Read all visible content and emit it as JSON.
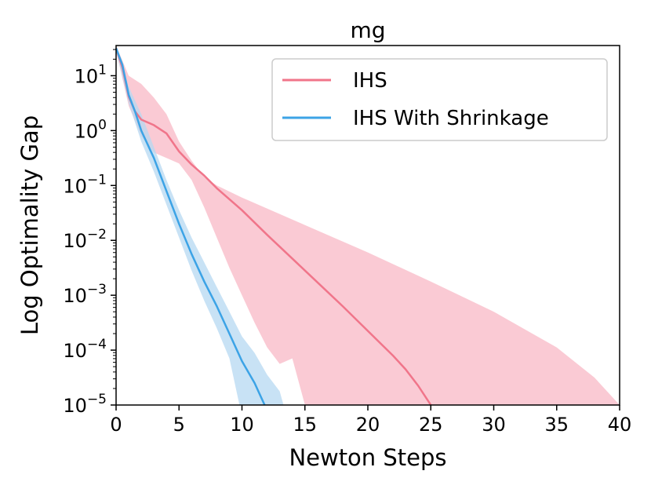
{
  "chart_data": {
    "type": "line",
    "title": "mg",
    "xlabel": "Newton Steps",
    "ylabel": "Log Optimality Gap",
    "xlim": [
      0,
      40
    ],
    "ylim_log10": [
      -5,
      1.55
    ],
    "yscale": "log",
    "x_ticks": [
      0,
      5,
      10,
      15,
      20,
      25,
      30,
      35,
      40
    ],
    "x_tick_labels": [
      "0",
      "5",
      "10",
      "15",
      "20",
      "25",
      "30",
      "35",
      "40"
    ],
    "y_ticks_exponent": [
      1,
      0,
      -1,
      -2,
      -3,
      -4,
      -5
    ],
    "y_tick_base": "10",
    "legend_position": "upper-right",
    "series": [
      {
        "name": "IHS",
        "color": "#f0758a",
        "band_color": "#f8b8c6",
        "mean_log10": [
          [
            0,
            1.5
          ],
          [
            0.5,
            1.15
          ],
          [
            1,
            0.62
          ],
          [
            1.5,
            0.35
          ],
          [
            2,
            0.2
          ],
          [
            3,
            0.1
          ],
          [
            4,
            -0.05
          ],
          [
            5,
            -0.38
          ],
          [
            6,
            -0.62
          ],
          [
            7,
            -0.82
          ],
          [
            8,
            -1.05
          ],
          [
            10,
            -1.45
          ],
          [
            12,
            -1.9
          ],
          [
            15,
            -2.55
          ],
          [
            18,
            -3.2
          ],
          [
            20,
            -3.65
          ],
          [
            22,
            -4.1
          ],
          [
            23,
            -4.35
          ],
          [
            24,
            -4.65
          ],
          [
            25,
            -5.0
          ]
        ],
        "upper_log10": [
          [
            0,
            1.55
          ],
          [
            1,
            1.0
          ],
          [
            2,
            0.85
          ],
          [
            3,
            0.6
          ],
          [
            4,
            0.3
          ],
          [
            5,
            -0.2
          ],
          [
            6,
            -0.55
          ],
          [
            7,
            -0.85
          ],
          [
            8,
            -1.0
          ],
          [
            10,
            -1.22
          ],
          [
            15,
            -1.72
          ],
          [
            20,
            -2.22
          ],
          [
            25,
            -2.75
          ],
          [
            30,
            -3.3
          ],
          [
            35,
            -3.95
          ],
          [
            38,
            -4.5
          ],
          [
            40,
            -5.0
          ]
        ],
        "lower_log10": [
          [
            0,
            1.45
          ],
          [
            1,
            0.45
          ],
          [
            2,
            -0.1
          ],
          [
            3,
            -0.4
          ],
          [
            4,
            -0.5
          ],
          [
            5,
            -0.6
          ],
          [
            6,
            -0.9
          ],
          [
            7,
            -1.4
          ],
          [
            8,
            -1.95
          ],
          [
            9,
            -2.5
          ],
          [
            10,
            -3.0
          ],
          [
            11,
            -3.5
          ],
          [
            12,
            -3.95
          ],
          [
            13,
            -4.25
          ],
          [
            14,
            -4.15
          ],
          [
            15,
            -5.0
          ]
        ]
      },
      {
        "name": "IHS With Shrinkage",
        "color": "#3ca3e6",
        "band_color": "#b5d8f2",
        "mean_log10": [
          [
            0,
            1.5
          ],
          [
            0.5,
            1.2
          ],
          [
            1,
            0.65
          ],
          [
            1.5,
            0.35
          ],
          [
            2,
            0.0
          ],
          [
            3,
            -0.5
          ],
          [
            4,
            -1.1
          ],
          [
            5,
            -1.7
          ],
          [
            6,
            -2.25
          ],
          [
            7,
            -2.75
          ],
          [
            8,
            -3.2
          ],
          [
            9,
            -3.7
          ],
          [
            10,
            -4.2
          ],
          [
            11,
            -4.6
          ],
          [
            11.8,
            -5.0
          ]
        ],
        "upper_log10": [
          [
            0,
            1.55
          ],
          [
            1,
            0.8
          ],
          [
            2,
            0.3
          ],
          [
            3,
            -0.3
          ],
          [
            4,
            -0.9
          ],
          [
            5,
            -1.45
          ],
          [
            6,
            -1.95
          ],
          [
            7,
            -2.4
          ],
          [
            8,
            -2.85
          ],
          [
            9,
            -3.3
          ],
          [
            10,
            -3.75
          ],
          [
            11,
            -4.05
          ],
          [
            12,
            -4.45
          ],
          [
            13,
            -4.75
          ],
          [
            13.3,
            -5.0
          ]
        ],
        "lower_log10": [
          [
            0,
            1.45
          ],
          [
            1,
            0.5
          ],
          [
            2,
            -0.2
          ],
          [
            3,
            -0.75
          ],
          [
            4,
            -1.35
          ],
          [
            5,
            -1.95
          ],
          [
            6,
            -2.55
          ],
          [
            7,
            -3.1
          ],
          [
            8,
            -3.6
          ],
          [
            9,
            -4.15
          ],
          [
            9.8,
            -5.0
          ]
        ]
      }
    ]
  }
}
